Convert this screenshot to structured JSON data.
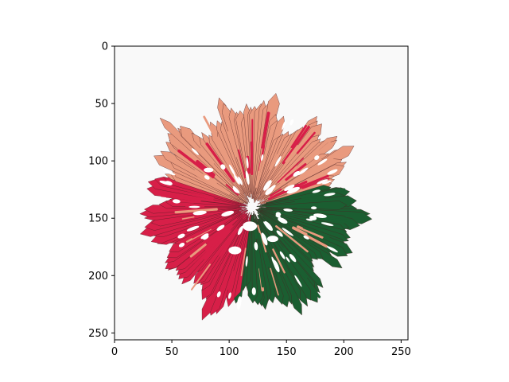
{
  "chart_data": {
    "type": "heatmap",
    "description_kind": "segmented image (imshow)",
    "image_size": [
      256,
      256
    ],
    "xlim": [
      0,
      256
    ],
    "ylim": [
      256,
      0
    ],
    "x_ticks": [
      0,
      50,
      100,
      150,
      200,
      250
    ],
    "y_ticks": [
      0,
      50,
      100,
      150,
      200,
      250
    ],
    "x_tick_labels": [
      "0",
      "50",
      "100",
      "150",
      "200",
      "250"
    ],
    "y_tick_labels": [
      "0",
      "50",
      "100",
      "150",
      "200",
      "250"
    ],
    "title": "",
    "xlabel": "",
    "ylabel": "",
    "grid": false,
    "colors": {
      "background": "#f9f9f9",
      "light_petals": "#e99a7e",
      "red_petals": "#d71f48",
      "green_petals": "#1b5e31",
      "gaps": "#ffffff",
      "outline": "#4a1f22"
    },
    "segments": [
      {
        "name": "light_petals",
        "color": "#e99a7e",
        "region": "upper and outer ring of flower"
      },
      {
        "name": "red_petals",
        "color": "#d71f48",
        "region": "left half of flower"
      },
      {
        "name": "green_petals",
        "color": "#1b5e31",
        "region": "lower-right quadrant of flower"
      }
    ]
  }
}
